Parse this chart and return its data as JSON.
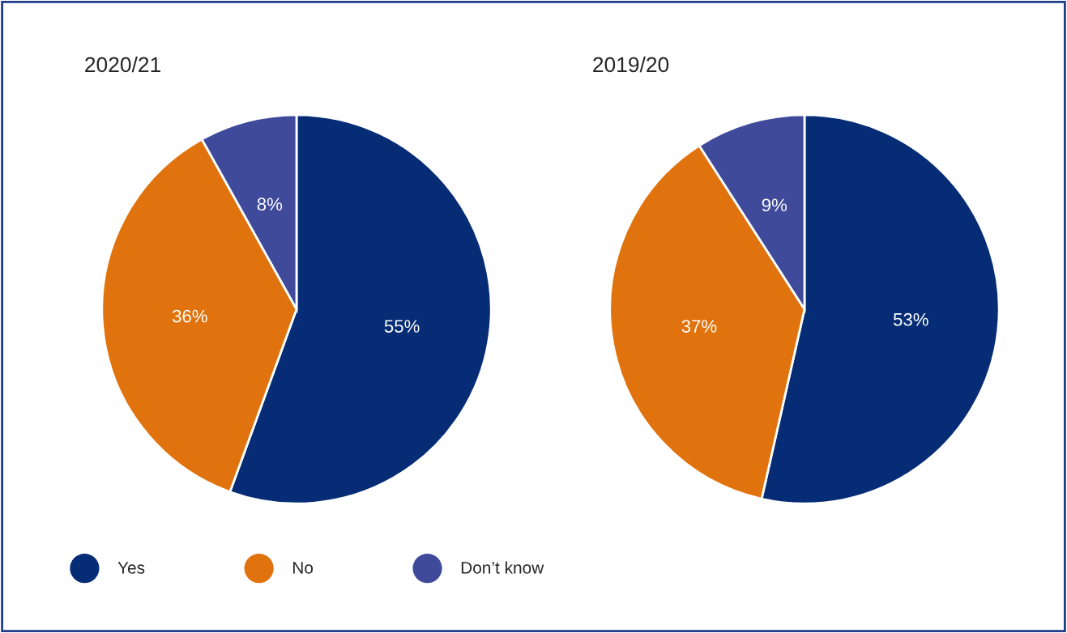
{
  "chart_data": [
    {
      "type": "pie",
      "title": "2020/21",
      "categories": [
        "Yes",
        "No",
        "Don’t know"
      ],
      "values": [
        55,
        36,
        8
      ],
      "colors": [
        "#052c74",
        "#e0730e",
        "#3f4a9a"
      ],
      "value_labels": [
        "55%",
        "36%",
        "8%"
      ],
      "legend": "bottom"
    },
    {
      "type": "pie",
      "title": "2019/20",
      "categories": [
        null,
        null,
        null
      ],
      "values": [
        53,
        37,
        9
      ],
      "colors": [
        "#052c74",
        "#e0730e",
        "#3f4a9a"
      ],
      "value_labels": [
        "53%",
        "37%",
        "9%"
      ]
    }
  ]
}
